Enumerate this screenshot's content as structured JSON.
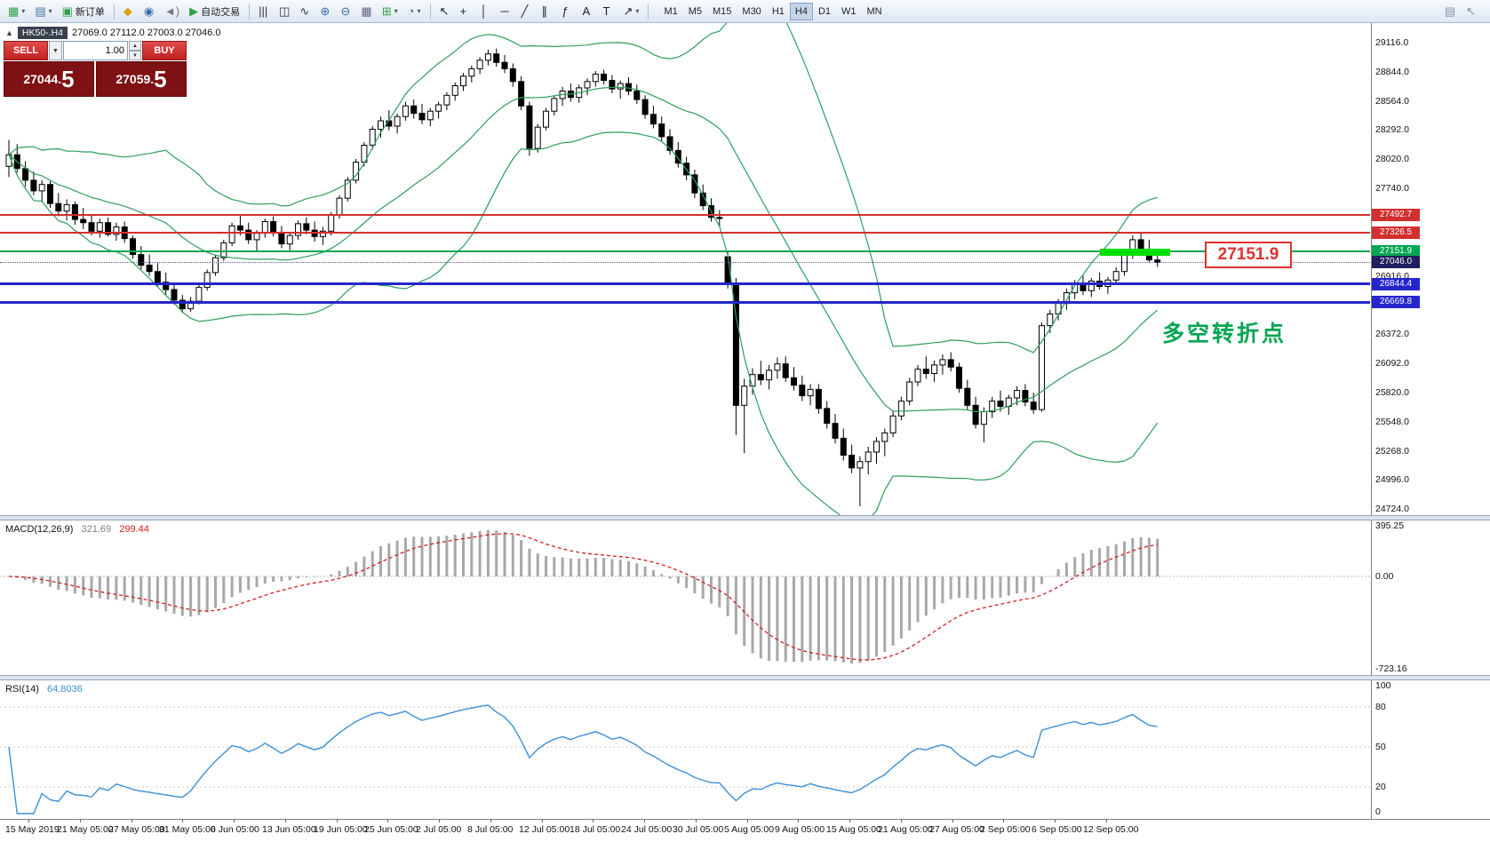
{
  "toolbar": {
    "left_items": [
      {
        "name": "new-chart-button",
        "glyph": "▦",
        "glyph_color": "#2f9e44",
        "dd": true
      },
      {
        "name": "profiles-button",
        "glyph": "▤",
        "glyph_color": "#4a6fa5",
        "dd": true
      },
      {
        "name": "new-order-button",
        "glyph": "▣",
        "glyph_color": "#2f9e44",
        "label": "新订单"
      },
      {
        "sep": true
      },
      {
        "name": "market-button",
        "glyph": "◆",
        "glyph_color": "#d9a514"
      },
      {
        "name": "contacts-button",
        "glyph": "◉",
        "glyph_color": "#3a6ea5"
      },
      {
        "name": "sound-alerts-button",
        "glyph": "◄)",
        "glyph_color": "#777777"
      },
      {
        "name": "auto-trading-button",
        "glyph": "▶",
        "glyph_color": "#2f9e44",
        "label": "自动交易"
      },
      {
        "sep": true
      },
      {
        "name": "bar-chart-type-button",
        "glyph": "|||",
        "glyph_color": "#333333"
      },
      {
        "name": "candlestick-chart-type-button",
        "glyph": "◫",
        "glyph_color": "#333333"
      },
      {
        "name": "line-chart-type-button",
        "glyph": "∿",
        "glyph_color": "#333333"
      },
      {
        "name": "zoom-in-button",
        "glyph": "⊕",
        "glyph_color": "#3a6ea5"
      },
      {
        "name": "zoom-out-button",
        "glyph": "⊖",
        "glyph_color": "#3a6ea5"
      },
      {
        "name": "tile-windows-button",
        "glyph": "▦",
        "glyph_color": "#666688"
      },
      {
        "name": "indicators-button",
        "glyph": "⊞",
        "glyph_color": "#2f9e44",
        "dd": true
      },
      {
        "name": "periods-button",
        "glyph": "◔",
        "glyph_color": "#666666",
        "dd": true
      },
      {
        "sep": true
      },
      {
        "name": "cursor-button",
        "glyph": "↖",
        "glyph_color": "#222222"
      },
      {
        "name": "crosshair-button",
        "glyph": "+",
        "glyph_color": "#222222"
      },
      {
        "name": "vertical-line-button",
        "glyph": "│",
        "glyph_color": "#222222"
      },
      {
        "name": "horizontal-line-button",
        "glyph": "─",
        "glyph_color": "#222222"
      },
      {
        "name": "trendline-button",
        "glyph": "╱",
        "glyph_color": "#222222"
      },
      {
        "name": "equidistant-channel-button",
        "glyph": "∥",
        "glyph_color": "#222222"
      },
      {
        "name": "fibonacci-button",
        "glyph": "ƒ",
        "glyph_color": "#222222"
      },
      {
        "name": "text-button",
        "glyph": "A",
        "glyph_color": "#222222"
      },
      {
        "name": "text-label-button",
        "glyph": "T",
        "glyph_color": "#222222"
      },
      {
        "name": "arrows-button",
        "glyph": "↗",
        "glyph_color": "#222222",
        "dd": true
      },
      {
        "sep": true
      }
    ],
    "timeframes": [
      "M1",
      "M5",
      "M15",
      "M30",
      "H1",
      "H4",
      "D1",
      "W1",
      "MN"
    ],
    "active_timeframe": "H4",
    "right_items": [
      {
        "name": "chart-window-button",
        "glyph": "▤",
        "glyph_color": "#8a93a3"
      },
      {
        "name": "pointer-tool-button",
        "glyph": "↖",
        "glyph_color": "#8a93a3"
      }
    ]
  },
  "chart": {
    "symbol_line": {
      "collapse_icon": "▲",
      "symbol": "HK50-.H4",
      "ohlc": "27069.0 27112.0 27003.0 27046.0"
    },
    "one_click": {
      "sell_label": "SELL",
      "buy_label": "BUY",
      "caret_icon": "▼",
      "volume": "1.00",
      "spinner_up": "▲",
      "spinner_down": "▼",
      "sell_int": "27044.",
      "sell_pip": "5",
      "buy_int": "27059.",
      "buy_pip": "5"
    }
  },
  "chart_data": {
    "type": "candlestick",
    "symbol": "HK50-.H4",
    "timeframe": "H4",
    "last_ohlc": [
      27069.0,
      27112.0,
      27003.0,
      27046.0
    ],
    "ylim": [
      24724,
      29116
    ],
    "y_axis_labels": [
      "29116.0",
      "28844.0",
      "28564.0",
      "28292.0",
      "28020.0",
      "27740.0",
      "26916.0",
      "26372.0",
      "26092.0",
      "25820.0",
      "25548.0",
      "25268.0",
      "24996.0",
      "24724.0"
    ],
    "x_axis_labels": [
      "15 May 2019",
      "21 May 05:00",
      "27 May 05:00",
      "31 May 05:00",
      "6 Jun 05:00",
      "13 Jun 05:00",
      "19 Jun 05:00",
      "25 Jun 05:00",
      "2 Jul 05:00",
      "8 Jul 05:00",
      "12 Jul 05:00",
      "18 Jul 05:00",
      "24 Jul 05:00",
      "30 Jul 05:00",
      "5 Aug 05:00",
      "9 Aug 05:00",
      "15 Aug 05:00",
      "21 Aug 05:00",
      "27 Aug 05:00",
      "2 Sep 05:00",
      "6 Sep 05:00",
      "12 Sep 05:00"
    ],
    "hlines": [
      {
        "price": 27492.7,
        "label": "27492.7",
        "color": "#d22f2f",
        "thickness": 2
      },
      {
        "price": 27326.5,
        "label": "27326.5",
        "color": "#d22f2f",
        "thickness": 2
      },
      {
        "price": 27151.9,
        "label": "27151.9",
        "color": "#00a651",
        "thickness": 2
      },
      {
        "price": 26844.4,
        "label": "26844.4",
        "color": "#2525cc",
        "thickness": 3
      },
      {
        "price": 26669.8,
        "label": "26669.8",
        "color": "#2525cc",
        "thickness": 3
      }
    ],
    "current_price": {
      "value": 27046.0,
      "label": "27046.0",
      "color": "#20205e"
    },
    "annotations": {
      "callout": {
        "text": "27151.9",
        "color": "#e03131"
      },
      "note": {
        "text": "多空转折点",
        "color": "#00a651"
      },
      "highlight": {
        "price": 27140,
        "color": "#00dd00"
      }
    },
    "indicators": [
      {
        "type": "bollinger_bands",
        "period": 20,
        "deviation": 2,
        "color": "#2e9e5b"
      },
      {
        "type": "macd",
        "fast": 12,
        "slow": 26,
        "signal": 9,
        "last_values": [
          321.69,
          299.44
        ],
        "scale": [
          395.25,
          0.0,
          -723.16
        ]
      },
      {
        "type": "rsi",
        "period": 14,
        "last_value": 64.8036,
        "levels": [
          80,
          50,
          20
        ]
      }
    ],
    "candles": [
      [
        27950,
        28200,
        27850,
        28060
      ],
      [
        28060,
        28160,
        27890,
        27930
      ],
      [
        27930,
        28000,
        27760,
        27820
      ],
      [
        27820,
        27900,
        27680,
        27720
      ],
      [
        27720,
        27820,
        27620,
        27780
      ],
      [
        27780,
        27810,
        27560,
        27600
      ],
      [
        27600,
        27700,
        27480,
        27530
      ],
      [
        27530,
        27640,
        27440,
        27590
      ],
      [
        27590,
        27620,
        27400,
        27450
      ],
      [
        27450,
        27560,
        27360,
        27420
      ],
      [
        27420,
        27500,
        27300,
        27340
      ],
      [
        27340,
        27460,
        27280,
        27420
      ],
      [
        27420,
        27470,
        27290,
        27310
      ],
      [
        27310,
        27420,
        27250,
        27380
      ],
      [
        27380,
        27430,
        27230,
        27270
      ],
      [
        27270,
        27300,
        27080,
        27120
      ],
      [
        27120,
        27200,
        26980,
        27020
      ],
      [
        27020,
        27120,
        26920,
        26960
      ],
      [
        26960,
        27040,
        26820,
        26860
      ],
      [
        26860,
        26950,
        26740,
        26790
      ],
      [
        26790,
        26840,
        26650,
        26690
      ],
      [
        26690,
        26740,
        26570,
        26610
      ],
      [
        26610,
        26720,
        26580,
        26680
      ],
      [
        26680,
        26840,
        26650,
        26810
      ],
      [
        26810,
        26980,
        26780,
        26950
      ],
      [
        26950,
        27120,
        26920,
        27090
      ],
      [
        27090,
        27260,
        27060,
        27230
      ],
      [
        27230,
        27420,
        27200,
        27390
      ],
      [
        27390,
        27490,
        27300,
        27350
      ],
      [
        27350,
        27420,
        27220,
        27260
      ],
      [
        27260,
        27350,
        27150,
        27320
      ],
      [
        27320,
        27460,
        27280,
        27430
      ],
      [
        27430,
        27480,
        27290,
        27330
      ],
      [
        27330,
        27390,
        27180,
        27220
      ],
      [
        27220,
        27330,
        27160,
        27300
      ],
      [
        27300,
        27440,
        27260,
        27410
      ],
      [
        27410,
        27470,
        27310,
        27350
      ],
      [
        27350,
        27430,
        27240,
        27290
      ],
      [
        27290,
        27380,
        27210,
        27340
      ],
      [
        27340,
        27520,
        27300,
        27490
      ],
      [
        27490,
        27680,
        27460,
        27650
      ],
      [
        27650,
        27850,
        27620,
        27820
      ],
      [
        27820,
        28020,
        27790,
        27990
      ],
      [
        27990,
        28180,
        27950,
        28150
      ],
      [
        28150,
        28330,
        28110,
        28300
      ],
      [
        28300,
        28420,
        28220,
        28380
      ],
      [
        28380,
        28480,
        28290,
        28330
      ],
      [
        28330,
        28450,
        28260,
        28420
      ],
      [
        28420,
        28560,
        28380,
        28520
      ],
      [
        28520,
        28580,
        28400,
        28450
      ],
      [
        28450,
        28540,
        28350,
        28390
      ],
      [
        28390,
        28500,
        28330,
        28470
      ],
      [
        28470,
        28560,
        28400,
        28530
      ],
      [
        28530,
        28650,
        28480,
        28620
      ],
      [
        28620,
        28740,
        28570,
        28710
      ],
      [
        28710,
        28830,
        28660,
        28800
      ],
      [
        28800,
        28900,
        28740,
        28870
      ],
      [
        28870,
        28980,
        28820,
        28950
      ],
      [
        28950,
        29050,
        28900,
        29010
      ],
      [
        29010,
        29060,
        28890,
        28930
      ],
      [
        28930,
        29000,
        28830,
        28870
      ],
      [
        28870,
        28920,
        28700,
        28750
      ],
      [
        28750,
        28800,
        28480,
        28520
      ],
      [
        28520,
        28560,
        28050,
        28120
      ],
      [
        28120,
        28350,
        28080,
        28320
      ],
      [
        28320,
        28500,
        28290,
        28470
      ],
      [
        28470,
        28620,
        28430,
        28590
      ],
      [
        28590,
        28700,
        28520,
        28660
      ],
      [
        28660,
        28730,
        28560,
        28600
      ],
      [
        28600,
        28720,
        28550,
        28690
      ],
      [
        28690,
        28780,
        28620,
        28750
      ],
      [
        28750,
        28850,
        28700,
        28820
      ],
      [
        28820,
        28860,
        28720,
        28760
      ],
      [
        28760,
        28810,
        28640,
        28680
      ],
      [
        28680,
        28760,
        28590,
        28730
      ],
      [
        28730,
        28790,
        28620,
        28660
      ],
      [
        28660,
        28720,
        28540,
        28580
      ],
      [
        28580,
        28620,
        28400,
        28440
      ],
      [
        28440,
        28520,
        28310,
        28350
      ],
      [
        28350,
        28420,
        28190,
        28230
      ],
      [
        28230,
        28300,
        28060,
        28100
      ],
      [
        28100,
        28180,
        27940,
        27980
      ],
      [
        27980,
        28040,
        27820,
        27870
      ],
      [
        27870,
        27920,
        27650,
        27700
      ],
      [
        27700,
        27780,
        27540,
        27580
      ],
      [
        27580,
        27650,
        27430,
        27470
      ],
      [
        27470,
        27540,
        27380,
        27460
      ],
      [
        27100,
        27150,
        26800,
        26850
      ],
      [
        26850,
        26900,
        25420,
        25700
      ],
      [
        25700,
        25950,
        25250,
        25880
      ],
      [
        25880,
        26050,
        25800,
        25990
      ],
      [
        25990,
        26120,
        25890,
        25940
      ],
      [
        25940,
        26080,
        25850,
        26030
      ],
      [
        26030,
        26150,
        25950,
        26090
      ],
      [
        26090,
        26160,
        25920,
        25960
      ],
      [
        25960,
        26060,
        25840,
        25890
      ],
      [
        25890,
        25980,
        25740,
        25790
      ],
      [
        25790,
        25900,
        25700,
        25850
      ],
      [
        25850,
        25900,
        25620,
        25670
      ],
      [
        25670,
        25740,
        25480,
        25530
      ],
      [
        25530,
        25620,
        25340,
        25390
      ],
      [
        25390,
        25480,
        25180,
        25230
      ],
      [
        25230,
        25330,
        25060,
        25110
      ],
      [
        25110,
        25220,
        24750,
        25170
      ],
      [
        25170,
        25310,
        25050,
        25260
      ],
      [
        25260,
        25400,
        25150,
        25360
      ],
      [
        25360,
        25480,
        25220,
        25440
      ],
      [
        25440,
        25640,
        25400,
        25600
      ],
      [
        25600,
        25780,
        25560,
        25740
      ],
      [
        25740,
        25960,
        25700,
        25920
      ],
      [
        25920,
        26080,
        25880,
        26040
      ],
      [
        26040,
        26160,
        25950,
        26000
      ],
      [
        26000,
        26120,
        25920,
        26080
      ],
      [
        26080,
        26180,
        25990,
        26130
      ],
      [
        26130,
        26200,
        26020,
        26060
      ],
      [
        26060,
        26100,
        25820,
        25860
      ],
      [
        25860,
        25940,
        25660,
        25700
      ],
      [
        25700,
        25780,
        25480,
        25520
      ],
      [
        25520,
        25680,
        25350,
        25640
      ],
      [
        25640,
        25780,
        25580,
        25740
      ],
      [
        25740,
        25840,
        25640,
        25690
      ],
      [
        25690,
        25800,
        25610,
        25770
      ],
      [
        25770,
        25880,
        25700,
        25840
      ],
      [
        25840,
        25900,
        25690,
        25730
      ],
      [
        25730,
        25820,
        25620,
        25660
      ],
      [
        25660,
        26480,
        25640,
        26450
      ],
      [
        26450,
        26600,
        26380,
        26560
      ],
      [
        26560,
        26700,
        26500,
        26660
      ],
      [
        26660,
        26800,
        26600,
        26760
      ],
      [
        26760,
        26880,
        26700,
        26840
      ],
      [
        26840,
        26920,
        26740,
        26780
      ],
      [
        26780,
        26900,
        26720,
        26870
      ],
      [
        26870,
        26950,
        26790,
        26820
      ],
      [
        26820,
        26910,
        26750,
        26880
      ],
      [
        26880,
        27000,
        26840,
        26960
      ],
      [
        26960,
        27160,
        26920,
        27120
      ],
      [
        27120,
        27300,
        27080,
        27260
      ],
      [
        27260,
        27320,
        27120,
        27160
      ],
      [
        27160,
        27260,
        27040,
        27070
      ],
      [
        27069,
        27112,
        27003,
        27046
      ]
    ]
  },
  "macd_panel": {
    "name": "MACD(12,26,9)",
    "value_main": "321.69",
    "value_signal": "299.44",
    "scale": [
      "395.25",
      "0.00",
      "-723.16"
    ],
    "histogram_color": "#a8a8a8",
    "signal_color": "#d02020"
  },
  "rsi_panel": {
    "name": "RSI(14)",
    "value": "64.8036",
    "levels": [
      80,
      50,
      20
    ],
    "scale_labels": [
      "100",
      "80",
      "50",
      "20",
      "0"
    ],
    "line_color": "#3c8fd6"
  }
}
